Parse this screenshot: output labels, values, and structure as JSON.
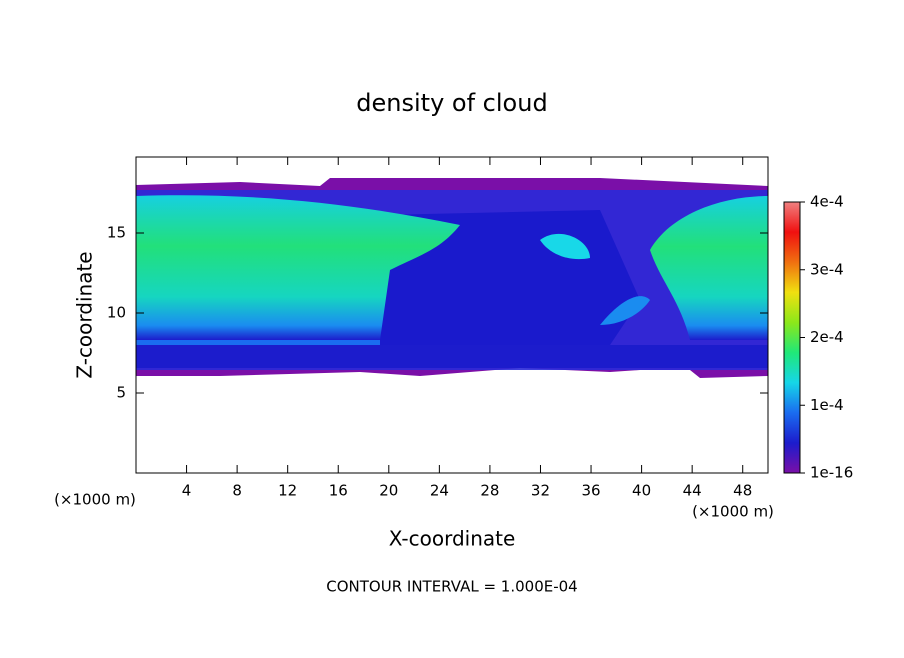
{
  "chart_data": {
    "type": "contour",
    "title": "density of cloud",
    "x_label": "X-coordinate",
    "y_label": "Z-coordinate",
    "x_unit_left": "(×1000 m)",
    "x_unit_right": "(×1000 m)",
    "note": "CONTOUR INTERVAL = 1.000E-04",
    "xlim": [
      0,
      50
    ],
    "xticks": [
      4,
      8,
      12,
      16,
      20,
      24,
      28,
      32,
      36,
      40,
      44,
      48
    ],
    "ylim": [
      0,
      19.75
    ],
    "yticks": [
      5,
      10,
      15
    ],
    "colorbar_lim": [
      1e-16,
      0.0004
    ],
    "colorbar_ticks": [
      {
        "value": 1e-16,
        "label": "1e-16"
      },
      {
        "value": 0.0001,
        "label": "1e-4"
      },
      {
        "value": 0.0002,
        "label": "2e-4"
      },
      {
        "value": 0.0003,
        "label": "3e-4"
      },
      {
        "value": 0.0004,
        "label": "4e-4"
      }
    ],
    "colormap": [
      "#7a0fa8",
      "#1c1ccc",
      "#1a6cf0",
      "#16d6e8",
      "#20e878",
      "#8ce81a",
      "#f0e010",
      "#f07010",
      "#f01010",
      "#f08080"
    ]
  }
}
